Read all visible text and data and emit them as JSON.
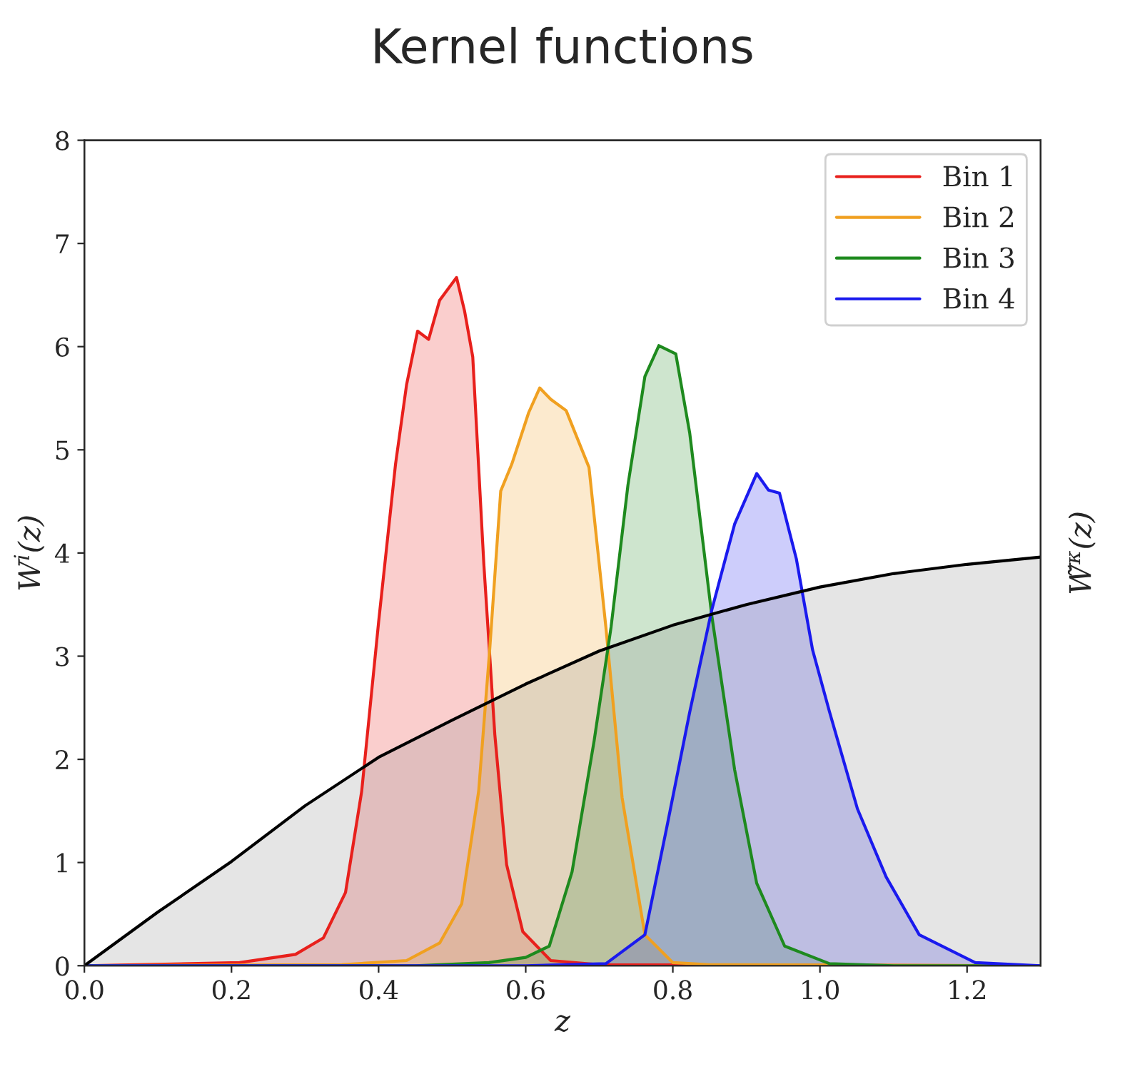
{
  "chart_data": {
    "type": "area",
    "title": "Kernel functions",
    "xlabel": "z",
    "ylabel": "W$^{i}$(z)",
    "y2label": "W̃$^{κ}$(z)",
    "xlim": [
      0,
      1.3
    ],
    "xticks": [
      {
        "value": 0,
        "label": "0.0"
      },
      {
        "value": 0.2,
        "label": "0.2"
      },
      {
        "value": 0.4,
        "label": "0.4"
      },
      {
        "value": 0.6,
        "label": "0.6"
      },
      {
        "value": 0.8,
        "label": "0.8"
      },
      {
        "value": 1.0,
        "label": "1.0"
      },
      {
        "value": 1.2,
        "label": "1.2"
      }
    ],
    "ylim": [
      0,
      8
    ],
    "yticks": [
      0,
      1,
      2,
      3,
      4,
      5,
      6,
      7,
      8
    ],
    "grid": false,
    "legend": "top right",
    "series": [
      {
        "name": "Bin 1",
        "color": "#e8201c",
        "x": [
          0.0,
          0.211,
          0.287,
          0.325,
          0.355,
          0.377,
          0.4,
          0.423,
          0.438,
          0.453,
          0.468,
          0.483,
          0.506,
          0.517,
          0.528,
          0.543,
          0.558,
          0.574,
          0.596,
          0.634,
          0.7,
          1.3
        ],
        "values": [
          0,
          0.03,
          0.11,
          0.27,
          0.71,
          1.69,
          3.33,
          4.86,
          5.63,
          6.15,
          6.07,
          6.45,
          6.67,
          6.34,
          5.9,
          3.9,
          2.24,
          0.98,
          0.33,
          0.05,
          0.01,
          0
        ]
      },
      {
        "name": "Bin 2",
        "color": "#f0a020",
        "x": [
          0.0,
          0.35,
          0.438,
          0.483,
          0.513,
          0.536,
          0.551,
          0.566,
          0.581,
          0.604,
          0.619,
          0.634,
          0.655,
          0.686,
          0.709,
          0.731,
          0.762,
          0.8,
          0.85,
          1.3
        ],
        "values": [
          0,
          0.01,
          0.05,
          0.22,
          0.6,
          1.69,
          3.06,
          4.6,
          4.86,
          5.36,
          5.6,
          5.49,
          5.38,
          4.83,
          3.28,
          1.63,
          0.3,
          0.03,
          0.01,
          0
        ]
      },
      {
        "name": "Bin 3",
        "color": "#1e8a1e",
        "x": [
          0.0,
          0.45,
          0.55,
          0.6,
          0.632,
          0.663,
          0.693,
          0.716,
          0.739,
          0.762,
          0.781,
          0.804,
          0.823,
          0.853,
          0.884,
          0.914,
          0.952,
          1.013,
          1.1,
          1.3
        ],
        "values": [
          0,
          0.0,
          0.03,
          0.08,
          0.19,
          0.91,
          2.18,
          3.28,
          4.66,
          5.71,
          6.01,
          5.93,
          5.16,
          3.39,
          1.9,
          0.8,
          0.19,
          0.02,
          0.0,
          0
        ]
      },
      {
        "name": "Bin 4",
        "color": "#1a1aee",
        "x": [
          0.0,
          0.6,
          0.709,
          0.762,
          0.792,
          0.823,
          0.853,
          0.884,
          0.914,
          0.93,
          0.945,
          0.968,
          0.99,
          1.013,
          1.051,
          1.09,
          1.135,
          1.211,
          1.3
        ],
        "values": [
          0,
          0.0,
          0.02,
          0.3,
          1.35,
          2.46,
          3.45,
          4.28,
          4.77,
          4.61,
          4.58,
          3.94,
          3.06,
          2.46,
          1.52,
          0.86,
          0.3,
          0.03,
          0.0
        ]
      },
      {
        "color": "#000000",
        "x": [
          0.0,
          0.1,
          0.2,
          0.3,
          0.4,
          0.5,
          0.6,
          0.7,
          0.8,
          0.9,
          1.0,
          1.1,
          1.2,
          1.3
        ],
        "values": [
          0,
          0.52,
          1.01,
          1.55,
          2.02,
          2.38,
          2.73,
          3.05,
          3.3,
          3.5,
          3.67,
          3.8,
          3.89,
          3.96
        ]
      }
    ]
  }
}
